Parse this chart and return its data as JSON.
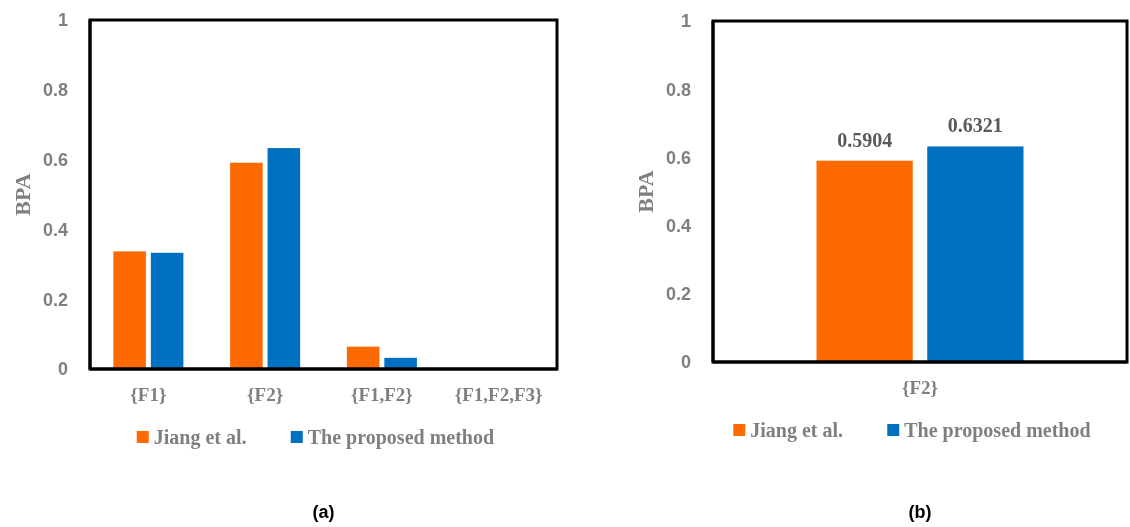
{
  "chart_data": [
    {
      "type": "bar",
      "title": "(a)",
      "ylabel": "BPA",
      "categories": [
        "{F1}",
        "{F2}",
        "{F1,F2}",
        "{F1,F2,F3}"
      ],
      "series": [
        {
          "name": "Jiang et al.",
          "color": "#ff6a00",
          "values": [
            0.337,
            0.591,
            0.064,
            0
          ]
        },
        {
          "name": "The proposed method",
          "color": "#0070c0",
          "values": [
            0.333,
            0.633,
            0.032,
            0
          ]
        }
      ],
      "ylim": [
        0,
        1
      ],
      "yticks": [
        0,
        0.2,
        0.4,
        0.6,
        0.8,
        1
      ],
      "legend": "bottom"
    },
    {
      "type": "bar",
      "title": "(b)",
      "ylabel": "BPA",
      "categories": [
        "{F2}"
      ],
      "series": [
        {
          "name": "Jiang et al.",
          "color": "#ff6a00",
          "values": [
            0.5904
          ]
        },
        {
          "name": "The proposed method",
          "color": "#0070c0",
          "values": [
            0.6321
          ]
        }
      ],
      "ylim": [
        0,
        1
      ],
      "yticks": [
        0,
        0.2,
        0.4,
        0.6,
        0.8,
        1
      ],
      "legend": "bottom",
      "data_labels": true
    }
  ]
}
